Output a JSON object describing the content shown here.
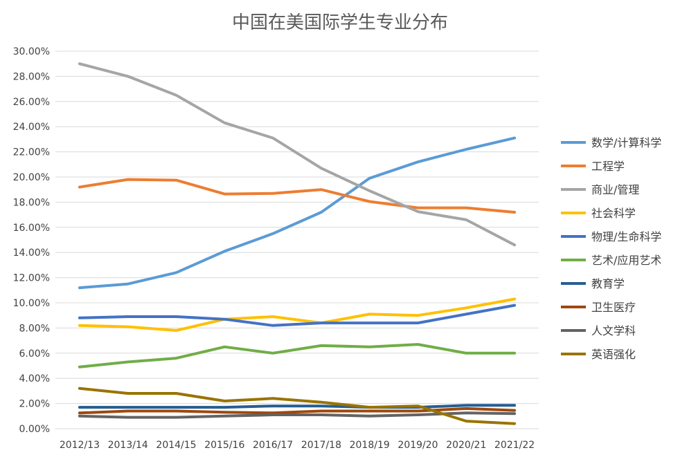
{
  "chart_data": {
    "type": "line",
    "title": "中国在美国际学生专业分布",
    "xlabel": "",
    "ylabel": "",
    "categories": [
      "2012/13",
      "2013/14",
      "2014/15",
      "2015/16",
      "2016/17",
      "2017/18",
      "2018/19",
      "2019/20",
      "2020/21",
      "2021/22"
    ],
    "ylim": [
      0,
      30
    ],
    "ytick_step": 2,
    "ytick_format": "percent_2dp",
    "grid": true,
    "legend_position": "right",
    "series": [
      {
        "name": "数学/计算科学",
        "color": "#5B9BD5",
        "values": [
          11.2,
          11.5,
          12.4,
          14.1,
          15.5,
          17.2,
          19.9,
          21.2,
          22.2,
          23.1
        ]
      },
      {
        "name": "工程学",
        "color": "#ED7D31",
        "values": [
          19.2,
          19.8,
          19.75,
          18.65,
          18.7,
          19.0,
          18.05,
          17.55,
          17.55,
          17.2
        ]
      },
      {
        "name": "商业/管理",
        "color": "#A5A5A5",
        "values": [
          29.0,
          28.0,
          26.5,
          24.3,
          23.1,
          20.7,
          18.9,
          17.25,
          16.6,
          14.6
        ]
      },
      {
        "name": "社会科学",
        "color": "#FFC000",
        "values": [
          8.2,
          8.1,
          7.8,
          8.7,
          8.9,
          8.4,
          9.1,
          9.0,
          9.6,
          10.3
        ]
      },
      {
        "name": "物理/生命科学",
        "color": "#4472C4",
        "values": [
          8.8,
          8.9,
          8.9,
          8.7,
          8.2,
          8.4,
          8.4,
          8.4,
          9.1,
          9.8
        ]
      },
      {
        "name": "艺术/应用艺术",
        "color": "#70AD47",
        "values": [
          4.9,
          5.3,
          5.6,
          6.5,
          6.0,
          6.6,
          6.5,
          6.7,
          6.0,
          6.0
        ]
      },
      {
        "name": "教育学",
        "color": "#255E91",
        "values": [
          1.7,
          1.7,
          1.7,
          1.7,
          1.8,
          1.8,
          1.7,
          1.7,
          1.85,
          1.85
        ]
      },
      {
        "name": "卫生医疗",
        "color": "#9E480E",
        "values": [
          1.25,
          1.4,
          1.4,
          1.3,
          1.25,
          1.4,
          1.4,
          1.4,
          1.6,
          1.45
        ]
      },
      {
        "name": "人文学科",
        "color": "#636363",
        "values": [
          1.0,
          0.9,
          0.9,
          1.0,
          1.1,
          1.1,
          1.0,
          1.1,
          1.25,
          1.2
        ]
      },
      {
        "name": "英语强化",
        "color": "#997300",
        "values": [
          3.2,
          2.8,
          2.8,
          2.2,
          2.4,
          2.1,
          1.7,
          1.8,
          0.6,
          0.4
        ]
      }
    ]
  }
}
